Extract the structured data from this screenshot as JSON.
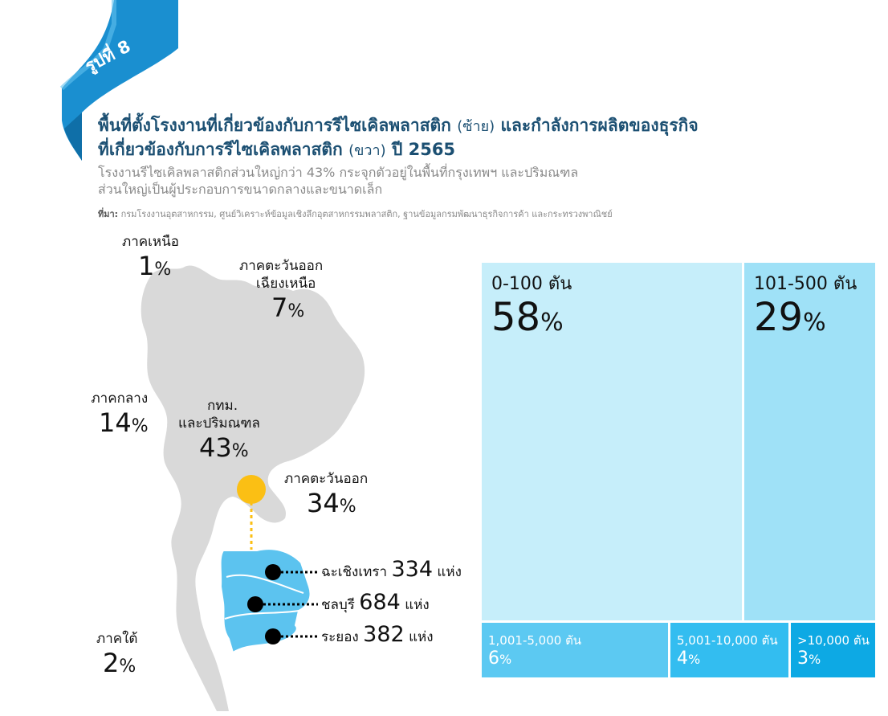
{
  "header": {
    "figure_label": "รูปที่ 8",
    "title_line1_a": "พื้นที่ตั้งโรงงานที่เกี่ยวข้องกับการรีไซเคิลพลาสติก",
    "title_line1_b": "(ซ้าย)",
    "title_line1_c": "และกำลังการผลิตของธุรกิจ",
    "title_line2_a": "ที่เกี่ยวข้องกับการรีไซเคิลพลาสติก",
    "title_line2_b": "(ขวา)",
    "title_line2_c": "ปี 2565",
    "subtitle_line1": "โรงงานรีไซเคิลพลาสติกส่วนใหญ่กว่า 43% กระจุกตัวอยู่ในพื้นที่กรุงเทพฯ และปริมณฑล",
    "subtitle_line2": "ส่วนใหญ่เป็นผู้ประกอบการขนาดกลางและขนาดเล็ก",
    "source_label": "ที่มา:",
    "source_text": "กรมโรงงานอุตสาหกรรม, ศูนย์วิเคราะห์ข้อมูลเชิงลึกอุตสาหกรรมพลาสติก, ฐานข้อมูลกรมพัฒนาธุรกิจการค้า และกระทรวงพาณิชย์"
  },
  "colors": {
    "ribbon": "#1a8fd0",
    "map_gray": "#d9d9d9",
    "bangkok_dot": "#fbbf14",
    "east_zoom": "#5cc3ef",
    "cell_large_left": "#c6eefa",
    "cell_large_right": "#9fe1f7",
    "cell_small_1": "#5cc9f2",
    "cell_small_2": "#33bdf0",
    "cell_small_3": "#0da9e4"
  },
  "percent_sign": "%",
  "provinces_unit": "แห่ง",
  "chart_data": [
    {
      "type": "map",
      "regions": [
        {
          "name": "ภาคเหนือ",
          "value": 1
        },
        {
          "name": "ภาคตะวันออกเฉียงเหนือ",
          "name_lines": [
            "ภาคตะวันออก",
            "เฉียงเหนือ"
          ],
          "value": 7
        },
        {
          "name": "ภาคกลาง",
          "value": 14
        },
        {
          "name": "กทม. และปริมณฑล",
          "name_lines": [
            "กทม.",
            "และปริมณฑล"
          ],
          "value": 43
        },
        {
          "name": "ภาคตะวันออก",
          "value": 34
        },
        {
          "name": "ภาคใต้",
          "value": 2
        }
      ],
      "provinces": [
        {
          "name": "ฉะเชิงเทรา",
          "value": 334
        },
        {
          "name": "ชลบุรี",
          "value": 684
        },
        {
          "name": "ระยอง",
          "value": 382
        }
      ]
    },
    {
      "type": "treemap",
      "items": [
        {
          "label": "0-100 ตัน",
          "value": 58
        },
        {
          "label": "101-500 ตัน",
          "value": 29
        },
        {
          "label": "1,001-5,000 ตัน",
          "value": 6
        },
        {
          "label": "5,001-10,000 ตัน",
          "value": 4
        },
        {
          "label": ">10,000 ตัน",
          "value": 3
        }
      ]
    }
  ]
}
